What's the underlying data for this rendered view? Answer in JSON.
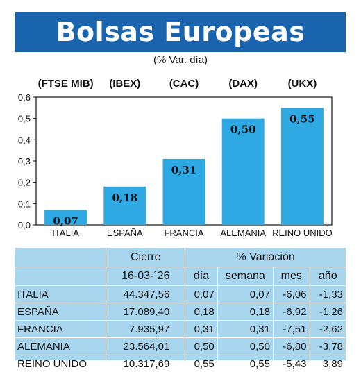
{
  "title": "Bolsas Europeas",
  "subtitle": "(% Var. día)",
  "chart_data": {
    "type": "bar",
    "indices": [
      "(FTSE MIB)",
      "(IBEX)",
      "(CAC)",
      "(DAX)",
      "(UKX)"
    ],
    "categories": [
      "ITALIA",
      "ESPAÑA",
      "FRANCIA",
      "ALEMANIA",
      "REINO UNIDO"
    ],
    "values": [
      0.07,
      0.18,
      0.31,
      0.5,
      0.55
    ],
    "value_labels": [
      "0,07",
      "0,18",
      "0,31",
      "0,50",
      "0,55"
    ],
    "ylim": [
      0,
      0.6
    ],
    "yticks": [
      "0,0",
      "0,1",
      "0,2",
      "0,3",
      "0,4",
      "0,5",
      "0,6"
    ],
    "bar_color": "#2ea9e4",
    "title": "",
    "xlabel": "",
    "ylabel": ""
  },
  "table": {
    "header_cierre": "Cierre",
    "header_variacion": "% Variación",
    "date": "16-03-´26",
    "col_dia": "día",
    "col_semana": "semana",
    "col_mes": "mes",
    "col_anio": "año",
    "rows": [
      {
        "name": "ITALIA",
        "cierre": "44.347,56",
        "dia": "0,07",
        "semana": "0,07",
        "mes": "-6,06",
        "anio": "-1,33"
      },
      {
        "name": "ESPAÑA",
        "cierre": "17.089,40",
        "dia": "0,18",
        "semana": "0,18",
        "mes": "-6,92",
        "anio": "-1,26"
      },
      {
        "name": "FRANCIA",
        "cierre": "7.935,97",
        "dia": "0,31",
        "semana": "0,31",
        "mes": "-7,51",
        "anio": "-2,62"
      },
      {
        "name": "ALEMANIA",
        "cierre": "23.564,01",
        "dia": "0,50",
        "semana": "0,50",
        "mes": "-6,80",
        "anio": "-3,78"
      },
      {
        "name": "REINO UNIDO",
        "cierre": "10.317,69",
        "dia": "0,55",
        "semana": "0,55",
        "mes": "-5,43",
        "anio": "3,89"
      }
    ]
  },
  "colors": {
    "banner": "#1a63ad",
    "table_bg": "#a9d6ef"
  }
}
